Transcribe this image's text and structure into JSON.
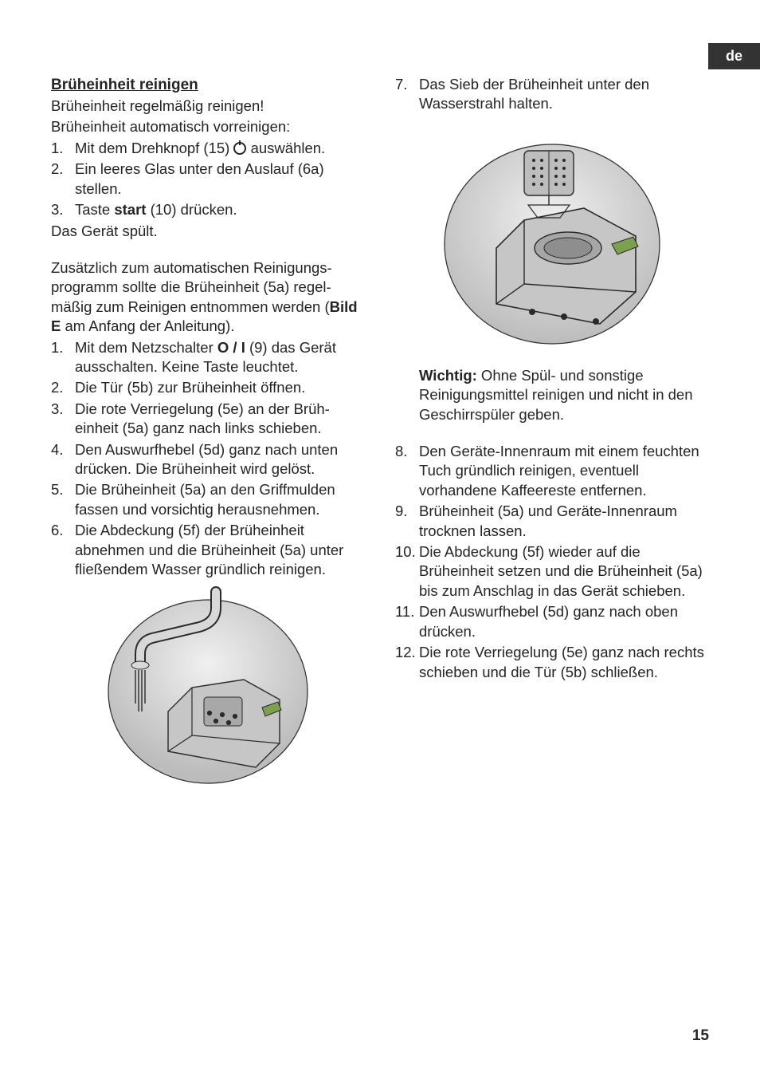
{
  "langTab": "de",
  "pageNumber": "15",
  "left": {
    "title": "Brüheinheit reinigen",
    "intro1": "Brüheinheit regelmäßig reinigen!",
    "intro2": "Brüheinheit automatisch vorreinigen:",
    "listA": [
      {
        "n": "1.",
        "pre": "Mit dem Drehknopf (15) ",
        "post": " auswählen.",
        "hasIcon": true
      },
      {
        "n": "2.",
        "t": "Ein leeres Glas unter den Auslauf (6a) stellen."
      },
      {
        "n": "3.",
        "pre": "Taste ",
        "bold": "start",
        "post": " (10) drücken."
      }
    ],
    "afterA": "Das Gerät spült.",
    "midPara": {
      "pre": "Zusätzlich zum automatischen Reinigungs­programm sollte die Brüheinheit (5a) regel­mäßig zum Reinigen entnommen werden (",
      "bold": "Bild E",
      "post": " am Anfang der Anleitung)."
    },
    "listB": [
      {
        "n": "1.",
        "pre": "Mit dem Netzschalter ",
        "bold": "O / I",
        "post": " (9) das Gerät ausschalten. Keine Taste leuchtet."
      },
      {
        "n": "2.",
        "t": "Die Tür (5b) zur Brüheinheit öffnen."
      },
      {
        "n": "3.",
        "t": "Die rote Verriegelung (5e) an der Brüh­einheit (5a) ganz nach links schieben."
      },
      {
        "n": "4.",
        "t": "Den Auswurfhebel (5d) ganz nach unten drücken. Die Brüheinheit wird gelöst."
      },
      {
        "n": "5.",
        "t": "Die Brüheinheit (5a) an den Griffmulden fassen und vorsichtig herausnehmen."
      },
      {
        "n": "6.",
        "t": "Die Abdeckung (5f) der Brüheinheit abnehmen und die Brüheinheit (5a) unter fließendem Wasser gründlich reinigen."
      }
    ]
  },
  "right": {
    "listC_first": {
      "n": "7.",
      "t": "Das Sieb der Brüheinheit unter den Wasserstrahl halten."
    },
    "important": {
      "bold": "Wichtig:",
      "post": " Ohne Spül- und sonstige Reinigungsmittel reinigen und nicht in den Geschirrspüler geben."
    },
    "listC_rest": [
      {
        "n": "8.",
        "t": "Den Geräte-Innenraum mit einem feuchten Tuch gründlich reinigen, even­tuell vorhandene Kaffeereste entfernen."
      },
      {
        "n": "9.",
        "t": "Brüheinheit (5a) und Geräte-Innenraum trocknen lassen."
      },
      {
        "n": "10.",
        "t": "Die Abdeckung (5f) wieder auf die Brüheinheit setzen und die Brüheinheit (5a) bis zum Anschlag in das Gerät schieben."
      },
      {
        "n": "11.",
        "t": "Den Auswurfhebel (5d) ganz nach oben drücken."
      },
      {
        "n": "12.",
        "t": "Die rote Verriegelung (5e) ganz nach rechts schieben und die Tür (5b) schließen."
      }
    ]
  },
  "figures": {
    "fig1": {
      "bg": "#dcdcdc",
      "stroke": "#2a2a2a",
      "accent": "#7aa050"
    },
    "fig2": {
      "bg": "#dcdcdc",
      "stroke": "#2a2a2a",
      "accent": "#7aa050"
    }
  }
}
